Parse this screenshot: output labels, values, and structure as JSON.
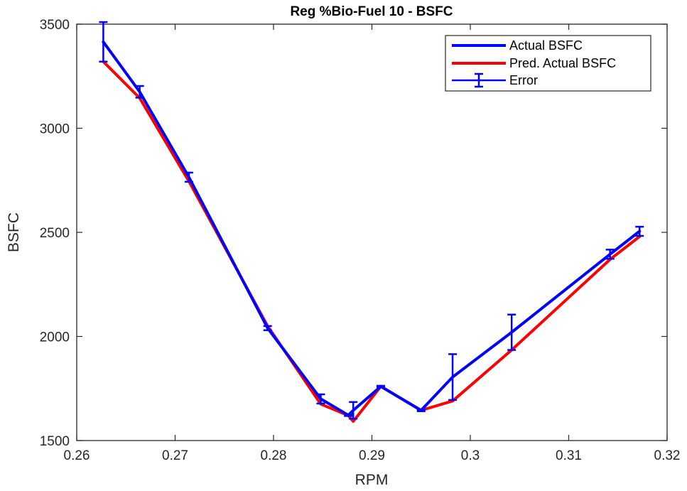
{
  "chart_data": {
    "type": "line",
    "title": "Reg %Bio-Fuel 10 - BSFC",
    "xlabel": "RPM",
    "ylabel": "BSFC",
    "xlim": [
      0.26,
      0.32
    ],
    "ylim": [
      1500,
      3500
    ],
    "xticks": [
      0.26,
      0.27,
      0.28,
      0.29,
      0.3,
      0.31,
      0.32
    ],
    "xtick_labels": [
      "0.26",
      "0.27",
      "0.28",
      "0.29",
      "0.3",
      "0.31",
      "0.32"
    ],
    "yticks": [
      1500,
      2000,
      2500,
      3000,
      3500
    ],
    "ytick_labels": [
      "1500",
      "2000",
      "2500",
      "3000",
      "3500"
    ],
    "grid": false,
    "legend_position": "top-right",
    "x": [
      0.2627,
      0.2664,
      0.2714,
      0.2794,
      0.2848,
      0.2876,
      0.2881,
      0.2909,
      0.295,
      0.2982,
      0.3042,
      0.3142,
      0.3172
    ],
    "series": [
      {
        "name": "Actual BSFC",
        "color": "#0000ff",
        "values": [
          3415,
          3175,
          2765,
          2040,
          1700,
          1622,
          1645,
          1760,
          1645,
          1805,
          2020,
          2395,
          2505
        ]
      },
      {
        "name": "Pred. Actual BSFC",
        "color": "#ff0000",
        "values": [
          3320,
          3145,
          2745,
          2050,
          1675,
          1620,
          1592,
          1760,
          1645,
          1690,
          1935,
          2370,
          2480
        ]
      },
      {
        "name": "Error",
        "color": "#0000ff",
        "type": "errorbar",
        "centers": [
          3415,
          3175,
          2765,
          2040,
          1700,
          1622,
          1645,
          1760,
          1645,
          1805,
          2020,
          2395,
          2505
        ],
        "errors": [
          95,
          28,
          22,
          10,
          22,
          4,
          40,
          3,
          4,
          110,
          85,
          22,
          22
        ]
      }
    ]
  }
}
